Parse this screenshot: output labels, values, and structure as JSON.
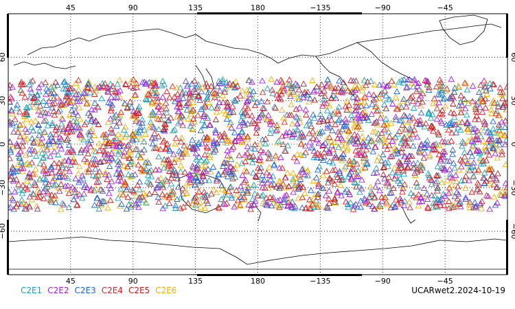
{
  "map": {
    "top_lon_labels": [
      "45",
      "90",
      "135",
      "180",
      "−135",
      "−90",
      "−45"
    ],
    "bottom_lon_labels": [
      "45",
      "90",
      "135",
      "180",
      "−135",
      "−90",
      "−45"
    ],
    "lat_labels": [
      "60",
      "30",
      "0",
      "−30",
      "−60"
    ],
    "projection": "cylindrical equidistant, centered on 180",
    "grid": "dotted",
    "lat_range": [
      -90,
      90
    ],
    "lon_range": [
      0,
      360
    ],
    "marker_symbol": "open triangle",
    "observation_lat_band": [
      -45,
      45
    ]
  },
  "legend": [
    {
      "label": "C2E1",
      "color": "#1aa3b8"
    },
    {
      "label": "C2E2",
      "color": "#a020f0"
    },
    {
      "label": "C2E3",
      "color": "#1e64e0"
    },
    {
      "label": "C2E4",
      "color": "#e0202a"
    },
    {
      "label": "C2E5",
      "color": "#cc1a1a"
    },
    {
      "label": "C2E6",
      "color": "#f5b000"
    }
  ],
  "stamp": "UCARwet2.2024-10-19"
}
